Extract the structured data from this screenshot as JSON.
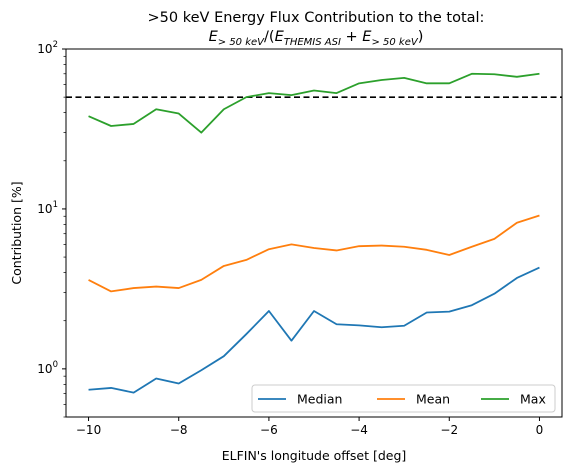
{
  "chart_data": {
    "type": "line",
    "title_line1": ">50 keV Energy Flux Contribution to the total:",
    "title_line2": {
      "E1": "E",
      "sub1": "> 50 keV",
      "slash": "/(",
      "E2": "E",
      "sub2": "THEMIS ASI",
      "plus": " + ",
      "E3": "E",
      "sub3": "> 50 keV",
      "close": ")"
    },
    "xlabel": "ELFIN's longitude offset [deg]",
    "ylabel": "Contribution [%]",
    "xlim": [
      -10.5,
      0.5
    ],
    "ylim": [
      0.5,
      100
    ],
    "yscale": "log",
    "x_ticks": [
      -10,
      -8,
      -6,
      -4,
      -2,
      0
    ],
    "x_tick_labels": [
      "−10",
      "−8",
      "−6",
      "−4",
      "−2",
      "0"
    ],
    "y_ticks": [
      1,
      10,
      100
    ],
    "y_tick_labels": [
      {
        "base": "10",
        "exp": "0"
      },
      {
        "base": "10",
        "exp": "1"
      },
      {
        "base": "10",
        "exp": "2"
      }
    ],
    "reference_line": {
      "y": 50,
      "style": "dashed",
      "color": "#000000"
    },
    "x": [
      -10,
      -9.5,
      -9,
      -8.5,
      -8,
      -7.5,
      -7,
      -6.5,
      -6,
      -5.5,
      -5,
      -4.5,
      -4,
      -3.5,
      -3,
      -2.5,
      -2,
      -1.5,
      -1,
      -0.5,
      0
    ],
    "series": [
      {
        "name": "Median",
        "color": "#1f77b4",
        "values": [
          0.74,
          0.76,
          0.71,
          0.87,
          0.81,
          0.98,
          1.2,
          1.65,
          2.3,
          1.5,
          2.3,
          1.9,
          1.87,
          1.82,
          1.86,
          2.25,
          2.28,
          2.5,
          2.95,
          3.7,
          4.3
        ]
      },
      {
        "name": "Mean",
        "color": "#ff7f0e",
        "values": [
          3.6,
          3.05,
          3.2,
          3.27,
          3.2,
          3.6,
          4.4,
          4.8,
          5.6,
          6.0,
          5.7,
          5.5,
          5.85,
          5.9,
          5.8,
          5.55,
          5.15,
          5.8,
          6.5,
          8.2,
          9.1
        ]
      },
      {
        "name": "Max",
        "color": "#2ca02c",
        "values": [
          38,
          33,
          34,
          42,
          39.5,
          30,
          42,
          50,
          53,
          51.5,
          55,
          53,
          61,
          64,
          66,
          61,
          61,
          70,
          69.5,
          67,
          70
        ]
      }
    ],
    "legend": {
      "placement": "lower-right",
      "columns": 3
    },
    "grid": false
  }
}
